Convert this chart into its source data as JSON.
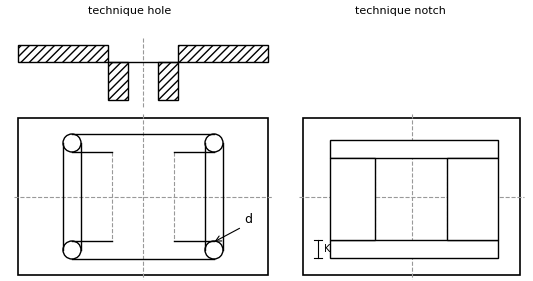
{
  "title_left": "technique hole",
  "title_right": "technique notch",
  "bg_color": "#ffffff",
  "line_color": "#000000",
  "dashed_color": "#999999",
  "label_d": "d",
  "label_k": "K"
}
